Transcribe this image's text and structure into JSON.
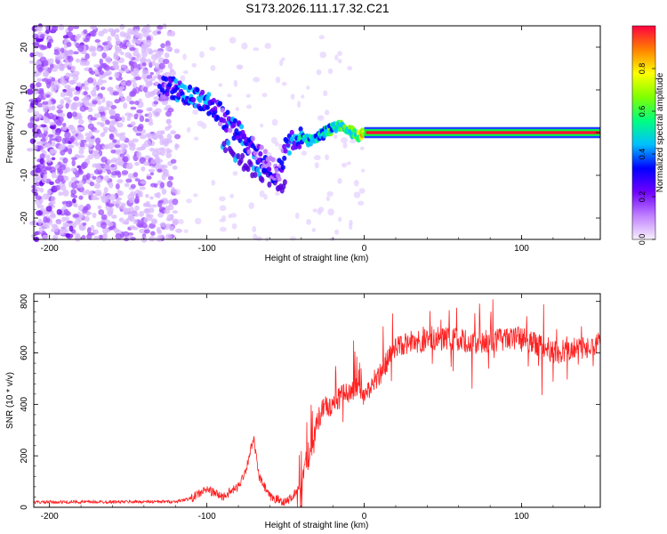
{
  "chart_data": [
    {
      "type": "heatmap",
      "title": "S173.2026.111.17.32.C21",
      "xlabel": "Height of straight line (km)",
      "ylabel": "Frequency (Hz)",
      "xlim": [
        -210,
        150
      ],
      "ylim": [
        -25,
        25
      ],
      "x_ticks": [
        -200,
        -100,
        0,
        100
      ],
      "y_ticks": [
        -20,
        -10,
        0,
        10,
        20
      ],
      "colorbar": {
        "label": "Normalized spectral amplitude",
        "range": [
          0,
          1
        ],
        "ticks": [
          0.0,
          0.2,
          0.4,
          0.6,
          0.8
        ],
        "colors": [
          "#f8f0fc",
          "#c080ff",
          "#7000ff",
          "#0000ff",
          "#00c0ff",
          "#00ff80",
          "#80ff00",
          "#ffff00",
          "#ff8000",
          "#ff0040"
        ]
      },
      "ridge": {
        "x": [
          -130,
          -120,
          -110,
          -100,
          -90,
          -80,
          -70,
          -60,
          -55,
          -50,
          -45,
          -40,
          -35,
          -30,
          -25,
          -20,
          -15,
          -10,
          -5,
          0,
          20,
          50,
          100,
          150
        ],
        "y": [
          11,
          10,
          8,
          7,
          4,
          0,
          -4,
          -8,
          -10,
          -4,
          -2,
          -1,
          -2,
          -1,
          0,
          1,
          2,
          1,
          -1,
          0,
          0,
          0,
          0,
          0
        ],
        "amplitude": [
          0.35,
          0.45,
          0.5,
          0.45,
          0.4,
          0.45,
          0.4,
          0.35,
          0.3,
          0.45,
          0.5,
          0.55,
          0.6,
          0.55,
          0.6,
          0.65,
          0.7,
          0.7,
          0.75,
          0.9,
          0.95,
          0.98,
          0.98,
          0.98
        ]
      },
      "secondary_ridge": {
        "x": [
          -90,
          -80,
          -70,
          -60,
          -50
        ],
        "y": [
          -2,
          -6,
          -9,
          -11,
          -13
        ]
      },
      "noise_region": {
        "x": [
          -210,
          -120
        ],
        "y": [
          -25,
          25
        ],
        "amplitude": [
          0.1,
          0.35
        ]
      }
    },
    {
      "type": "line",
      "title": "",
      "xlabel": "Height of straight line (km)",
      "ylabel": "SNR (10 * v/v)",
      "xlim": [
        -210,
        150
      ],
      "ylim": [
        0,
        830
      ],
      "x_ticks": [
        -200,
        -100,
        0,
        100
      ],
      "y_ticks": [
        0,
        200,
        400,
        600,
        800
      ],
      "color": "#ff2020",
      "series": [
        {
          "name": "SNR",
          "x": [
            -210,
            -120,
            -110,
            -100,
            -90,
            -80,
            -75,
            -72,
            -70,
            -67,
            -60,
            -50,
            -45,
            -40,
            -35,
            -30,
            -25,
            -20,
            -15,
            -10,
            -5,
            0,
            10,
            20,
            30,
            50,
            70,
            100,
            120,
            140,
            150
          ],
          "y": [
            20,
            22,
            35,
            70,
            40,
            80,
            150,
            230,
            260,
            120,
            40,
            20,
            45,
            90,
            200,
            330,
            400,
            390,
            430,
            450,
            470,
            440,
            520,
            620,
            640,
            660,
            640,
            660,
            600,
            620,
            640
          ]
        }
      ]
    }
  ]
}
